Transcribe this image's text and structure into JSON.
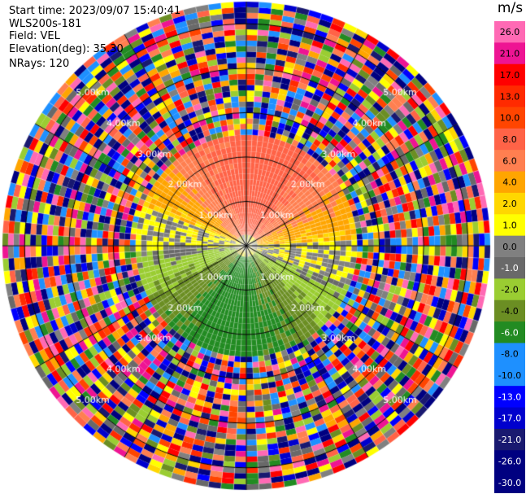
{
  "header": {
    "start_time": "Start time: 2023/09/07 15:40:41",
    "instrument": "WLS200s-181",
    "field": "Field: VEL",
    "elevation": "Elevation(deg): 35.30",
    "nrays": "NRays: 120"
  },
  "colorbar": {
    "unit": "m/s",
    "labels": [
      "26.0",
      "21.0",
      "17.0",
      "13.0",
      "10.0",
      "8.0",
      "6.0",
      "4.0",
      "2.0",
      "1.0",
      "0.0",
      "-1.0",
      "-2.0",
      "-4.0",
      "-6.0",
      "-8.0",
      "-10.0",
      "-13.0",
      "-17.0",
      "-21.0",
      "-26.0",
      "-30.0"
    ],
    "colors": [
      "#ff69b4",
      "#ee1493",
      "#ff0000",
      "#ff2a00",
      "#ff4500",
      "#ff6347",
      "#ff7f50",
      "#ffa500",
      "#ffd700",
      "#ffff00",
      "#808080",
      "#696969",
      "#9acd32",
      "#6b8e23",
      "#228b22",
      "#1e90ff",
      "#1e90ff",
      "#0000ff",
      "#0000cd",
      "#191970",
      "#000080",
      "#000080"
    ]
  },
  "chart_data": {
    "type": "heatmap",
    "title": "",
    "field": "VEL",
    "units": "m/s",
    "nrays": 120,
    "elevation_deg": 35.3,
    "range_ring_labels": [
      "1.00km",
      "2.00km",
      "3.00km",
      "4.00km",
      "5.00km"
    ],
    "range_ring_km": [
      1,
      2,
      3,
      4,
      5
    ],
    "valid_data_max_km": 2.5,
    "colorbar_min": -30.0,
    "colorbar_max": 26.0,
    "description_pattern": [
      {
        "sector": "north",
        "range_km": [
          0,
          2.5
        ],
        "velocity_ms": [
          2,
          8
        ]
      },
      {
        "sector": "south",
        "range_km": [
          0,
          2.5
        ],
        "velocity_ms": [
          -8,
          -2
        ]
      },
      {
        "sector": "east-west band",
        "range_km": [
          0,
          2.0
        ],
        "velocity_ms": [
          -1,
          1
        ]
      },
      {
        "sector": "all",
        "range_km": [
          2.5,
          5.5
        ],
        "velocity_ms": "noise"
      }
    ]
  }
}
